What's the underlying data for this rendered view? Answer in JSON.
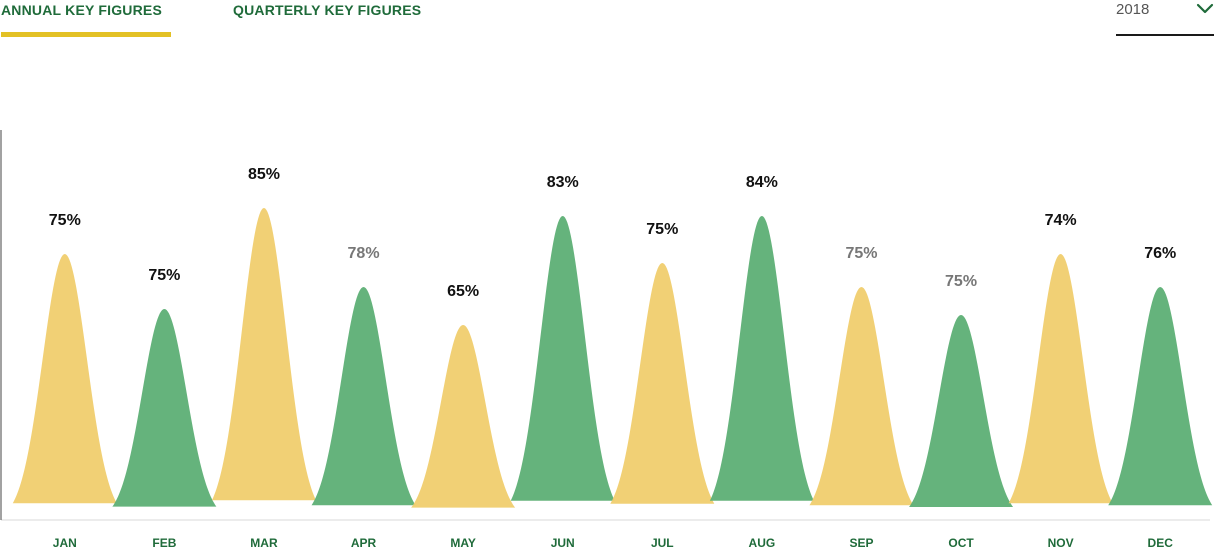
{
  "tabs": {
    "annual": "ANNUAL KEY FIGURES",
    "quarterly": "QUARTERLY KEY FIGURES"
  },
  "year_select": {
    "value": "2018",
    "icon": "chevron-down-icon"
  },
  "colors": {
    "tab_text": "#1f6b3a",
    "active_underline": "#e3c125",
    "yellow_peak": "#f0cd6e",
    "green_peak": "#5daf75",
    "dark_value_label": "#111111",
    "gray_value_label": "#777777",
    "month_label": "#1f6b3a"
  },
  "chart_data": {
    "type": "area",
    "categories": [
      "JAN",
      "FEB",
      "MAR",
      "APR",
      "MAY",
      "JUN",
      "JUL",
      "AUG",
      "SEP",
      "OCT",
      "NOV",
      "DEC"
    ],
    "labels": [
      "75%",
      "75%",
      "85%",
      "78%",
      "65%",
      "83%",
      "75%",
      "84%",
      "75%",
      "75%",
      "74%",
      "76%"
    ],
    "values": [
      75,
      75,
      85,
      78,
      65,
      83,
      75,
      84,
      75,
      75,
      74,
      76
    ],
    "peak_heights": [
      266,
      211,
      312,
      233,
      195,
      304,
      257,
      304,
      233,
      205,
      266,
      233
    ],
    "peak_colors": [
      "yellow",
      "green",
      "yellow",
      "green",
      "yellow",
      "green",
      "yellow",
      "green",
      "yellow",
      "green",
      "yellow",
      "green"
    ],
    "label_emphasis": [
      "dark",
      "dark",
      "dark",
      "gray",
      "dark",
      "dark",
      "dark",
      "dark",
      "gray",
      "gray",
      "dark",
      "dark"
    ],
    "ylim": [
      0,
      340
    ],
    "grid": false,
    "legend": "none"
  }
}
